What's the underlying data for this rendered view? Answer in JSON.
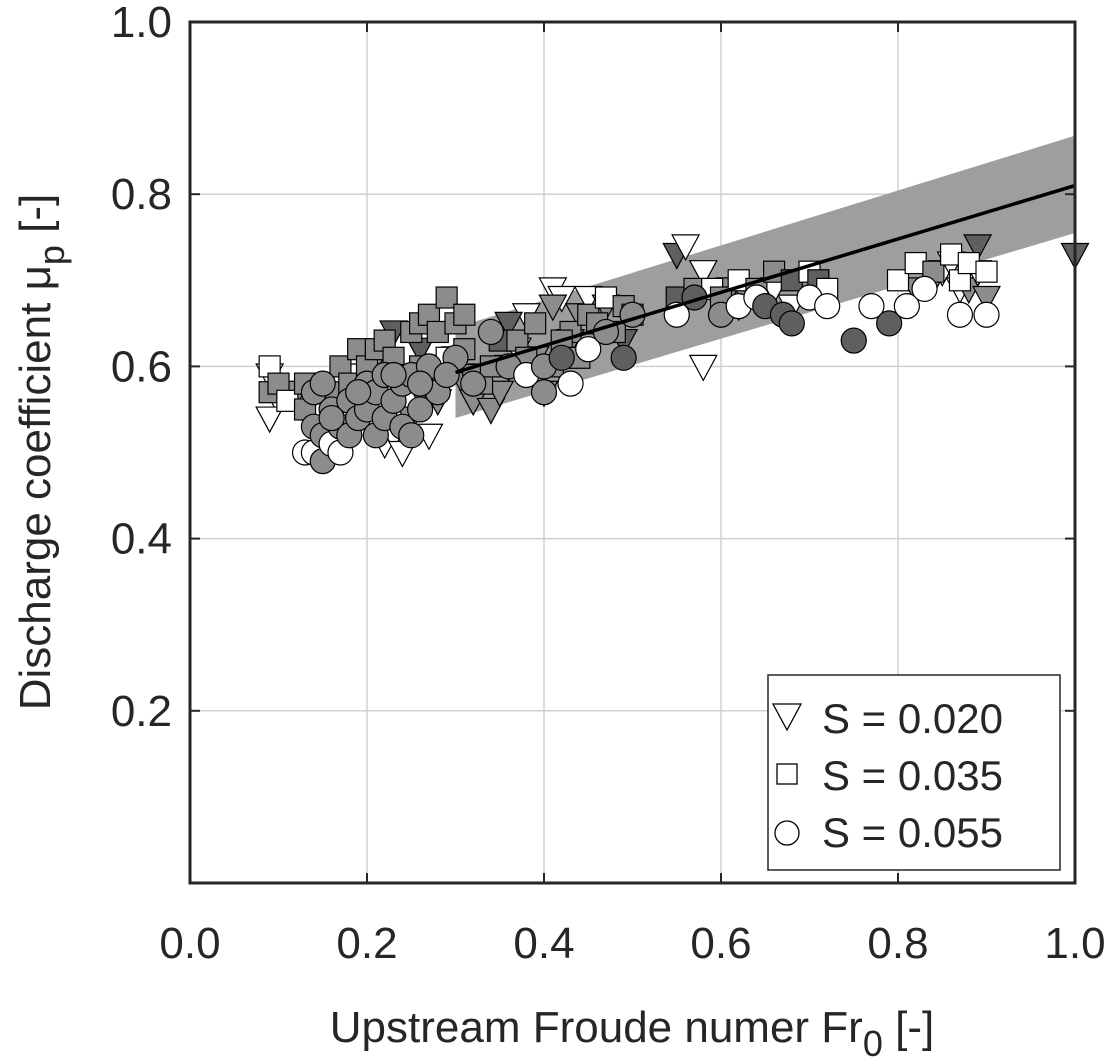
{
  "chart_data": {
    "type": "scatter",
    "xlabel": "Upstream Froude numer Fr",
    "xlabel_sub": "0",
    "xlabel_suffix": " [-]",
    "ylabel": "Discharge coefficient μ",
    "ylabel_sub": "p",
    "ylabel_suffix": " [-]",
    "xlim": [
      0.0,
      1.0
    ],
    "ylim": [
      0.0,
      1.0
    ],
    "xticks": [
      "0.0",
      "0.2",
      "0.4",
      "0.6",
      "0.8",
      "1.0"
    ],
    "yticks": [
      "0.2",
      "0.4",
      "0.6",
      "0.8",
      "1.0"
    ],
    "grid": true,
    "legend_position": "bottom-right",
    "colors": {
      "white": "#ffffff",
      "light": "#8c8c8c",
      "dark": "#5f5f5f",
      "band": "#9e9e9e",
      "line": "#000000"
    },
    "fit_line": {
      "x": [
        0.3,
        1.0
      ],
      "y": [
        0.593,
        0.81
      ]
    },
    "uncertainty_band": {
      "x": [
        0.3,
        1.0
      ],
      "lower": [
        0.54,
        0.755
      ],
      "upper": [
        0.645,
        0.868
      ]
    },
    "series": [
      {
        "name": "S = 0.020",
        "marker": "triangle-down",
        "points": [
          [
            0.09,
            0.59,
            "white"
          ],
          [
            0.1,
            0.56,
            "white"
          ],
          [
            0.09,
            0.54,
            "white"
          ],
          [
            0.12,
            0.57,
            "light"
          ],
          [
            0.15,
            0.57,
            "light"
          ],
          [
            0.17,
            0.58,
            "white"
          ],
          [
            0.19,
            0.59,
            "white"
          ],
          [
            0.2,
            0.56,
            "light"
          ],
          [
            0.21,
            0.53,
            "white"
          ],
          [
            0.22,
            0.51,
            "white"
          ],
          [
            0.23,
            0.52,
            "white"
          ],
          [
            0.24,
            0.5,
            "white"
          ],
          [
            0.25,
            0.54,
            "light"
          ],
          [
            0.26,
            0.57,
            "light"
          ],
          [
            0.27,
            0.52,
            "white"
          ],
          [
            0.28,
            0.59,
            "light"
          ],
          [
            0.29,
            0.6,
            "white"
          ],
          [
            0.3,
            0.61,
            "light"
          ],
          [
            0.31,
            0.58,
            "light"
          ],
          [
            0.32,
            0.56,
            "light"
          ],
          [
            0.33,
            0.59,
            "light"
          ],
          [
            0.34,
            0.55,
            "light"
          ],
          [
            0.35,
            0.57,
            "light"
          ],
          [
            0.36,
            0.6,
            "light"
          ],
          [
            0.37,
            0.62,
            "white"
          ],
          [
            0.38,
            0.66,
            "white"
          ],
          [
            0.39,
            0.61,
            "light"
          ],
          [
            0.4,
            0.57,
            "light"
          ],
          [
            0.41,
            0.69,
            "white"
          ],
          [
            0.42,
            0.68,
            "white"
          ],
          [
            0.43,
            0.63,
            "light"
          ],
          [
            0.44,
            0.66,
            "light"
          ],
          [
            0.45,
            0.68,
            "white"
          ],
          [
            0.47,
            0.67,
            "light"
          ],
          [
            0.49,
            0.63,
            "dark"
          ],
          [
            0.26,
            0.62,
            "dark"
          ],
          [
            0.23,
            0.64,
            "dark"
          ],
          [
            0.21,
            0.61,
            "light"
          ],
          [
            0.28,
            0.56,
            "light"
          ],
          [
            0.36,
            0.65,
            "dark"
          ],
          [
            0.41,
            0.67,
            "light"
          ],
          [
            0.55,
            0.73,
            "dark"
          ],
          [
            0.56,
            0.74,
            "white"
          ],
          [
            0.58,
            0.71,
            "white"
          ],
          [
            0.58,
            0.6,
            "white"
          ],
          [
            0.6,
            0.67,
            "white"
          ],
          [
            0.61,
            0.69,
            "light"
          ],
          [
            0.62,
            0.67,
            "light"
          ],
          [
            0.63,
            0.68,
            "light"
          ],
          [
            0.66,
            0.69,
            "white"
          ],
          [
            0.68,
            0.67,
            "white"
          ],
          [
            0.7,
            0.69,
            "light"
          ],
          [
            0.82,
            0.69,
            "light"
          ],
          [
            0.84,
            0.7,
            "light"
          ],
          [
            0.85,
            0.71,
            "white"
          ],
          [
            0.86,
            0.72,
            "white"
          ],
          [
            0.87,
            0.69,
            "white"
          ],
          [
            0.88,
            0.69,
            "light"
          ],
          [
            0.89,
            0.74,
            "dark"
          ],
          [
            0.9,
            0.68,
            "light"
          ],
          [
            0.89,
            0.71,
            "white"
          ],
          [
            1.0,
            0.73,
            "dark"
          ]
        ]
      },
      {
        "name": "S = 0.035",
        "marker": "square",
        "points": [
          [
            0.09,
            0.6,
            "white"
          ],
          [
            0.09,
            0.57,
            "light"
          ],
          [
            0.1,
            0.58,
            "light"
          ],
          [
            0.11,
            0.56,
            "white"
          ],
          [
            0.13,
            0.58,
            "light"
          ],
          [
            0.16,
            0.57,
            "light"
          ],
          [
            0.17,
            0.6,
            "light"
          ],
          [
            0.18,
            0.58,
            "light"
          ],
          [
            0.19,
            0.62,
            "light"
          ],
          [
            0.2,
            0.6,
            "light"
          ],
          [
            0.21,
            0.62,
            "light"
          ],
          [
            0.22,
            0.63,
            "light"
          ],
          [
            0.23,
            0.61,
            "light"
          ],
          [
            0.24,
            0.59,
            "light"
          ],
          [
            0.25,
            0.64,
            "light"
          ],
          [
            0.26,
            0.65,
            "light"
          ],
          [
            0.27,
            0.66,
            "light"
          ],
          [
            0.28,
            0.64,
            "light"
          ],
          [
            0.29,
            0.68,
            "light"
          ],
          [
            0.3,
            0.65,
            "light"
          ],
          [
            0.31,
            0.62,
            "light"
          ],
          [
            0.32,
            0.59,
            "light"
          ],
          [
            0.33,
            0.58,
            "light"
          ],
          [
            0.35,
            0.63,
            "dark"
          ],
          [
            0.37,
            0.63,
            "light"
          ],
          [
            0.39,
            0.65,
            "light"
          ],
          [
            0.41,
            0.6,
            "light"
          ],
          [
            0.43,
            0.64,
            "light"
          ],
          [
            0.45,
            0.66,
            "light"
          ],
          [
            0.47,
            0.68,
            "white"
          ],
          [
            0.49,
            0.67,
            "light"
          ],
          [
            0.5,
            0.66,
            "light"
          ],
          [
            0.55,
            0.68,
            "dark"
          ],
          [
            0.57,
            0.69,
            "light"
          ],
          [
            0.59,
            0.69,
            "white"
          ],
          [
            0.6,
            0.68,
            "light"
          ],
          [
            0.62,
            0.7,
            "white"
          ],
          [
            0.64,
            0.69,
            "light"
          ],
          [
            0.66,
            0.71,
            "light"
          ],
          [
            0.68,
            0.7,
            "dark"
          ],
          [
            0.7,
            0.71,
            "white"
          ],
          [
            0.71,
            0.7,
            "dark"
          ],
          [
            0.72,
            0.69,
            "white"
          ],
          [
            0.8,
            0.7,
            "white"
          ],
          [
            0.82,
            0.72,
            "white"
          ],
          [
            0.84,
            0.71,
            "light"
          ],
          [
            0.86,
            0.73,
            "white"
          ],
          [
            0.87,
            0.7,
            "white"
          ],
          [
            0.88,
            0.72,
            "white"
          ],
          [
            0.9,
            0.71,
            "white"
          ],
          [
            0.13,
            0.55,
            "light"
          ],
          [
            0.26,
            0.6,
            "light"
          ],
          [
            0.29,
            0.61,
            "white"
          ],
          [
            0.31,
            0.66,
            "light"
          ],
          [
            0.34,
            0.6,
            "light"
          ],
          [
            0.38,
            0.61,
            "light"
          ],
          [
            0.42,
            0.63,
            "light"
          ],
          [
            0.44,
            0.61,
            "light"
          ],
          [
            0.46,
            0.65,
            "light"
          ],
          [
            0.48,
            0.64,
            "light"
          ]
        ]
      },
      {
        "name": "S = 0.055",
        "marker": "circle",
        "points": [
          [
            0.13,
            0.5,
            "white"
          ],
          [
            0.14,
            0.5,
            "white"
          ],
          [
            0.14,
            0.53,
            "light"
          ],
          [
            0.15,
            0.49,
            "light"
          ],
          [
            0.15,
            0.52,
            "light"
          ],
          [
            0.16,
            0.51,
            "white"
          ],
          [
            0.16,
            0.55,
            "light"
          ],
          [
            0.17,
            0.5,
            "white"
          ],
          [
            0.17,
            0.53,
            "light"
          ],
          [
            0.18,
            0.56,
            "light"
          ],
          [
            0.18,
            0.52,
            "light"
          ],
          [
            0.19,
            0.54,
            "light"
          ],
          [
            0.2,
            0.58,
            "light"
          ],
          [
            0.2,
            0.55,
            "light"
          ],
          [
            0.21,
            0.52,
            "light"
          ],
          [
            0.21,
            0.57,
            "light"
          ],
          [
            0.22,
            0.54,
            "light"
          ],
          [
            0.22,
            0.59,
            "light"
          ],
          [
            0.23,
            0.56,
            "light"
          ],
          [
            0.24,
            0.53,
            "light"
          ],
          [
            0.24,
            0.58,
            "light"
          ],
          [
            0.25,
            0.59,
            "light"
          ],
          [
            0.26,
            0.55,
            "light"
          ],
          [
            0.27,
            0.6,
            "light"
          ],
          [
            0.28,
            0.57,
            "light"
          ],
          [
            0.3,
            0.61,
            "light"
          ],
          [
            0.32,
            0.58,
            "light"
          ],
          [
            0.34,
            0.64,
            "light"
          ],
          [
            0.36,
            0.6,
            "light"
          ],
          [
            0.38,
            0.59,
            "white"
          ],
          [
            0.4,
            0.6,
            "light"
          ],
          [
            0.4,
            0.57,
            "light"
          ],
          [
            0.42,
            0.61,
            "dark"
          ],
          [
            0.43,
            0.58,
            "white"
          ],
          [
            0.45,
            0.62,
            "white"
          ],
          [
            0.47,
            0.64,
            "light"
          ],
          [
            0.49,
            0.61,
            "dark"
          ],
          [
            0.5,
            0.66,
            "light"
          ],
          [
            0.55,
            0.66,
            "white"
          ],
          [
            0.57,
            0.68,
            "dark"
          ],
          [
            0.6,
            0.66,
            "light"
          ],
          [
            0.62,
            0.67,
            "white"
          ],
          [
            0.64,
            0.68,
            "white"
          ],
          [
            0.65,
            0.67,
            "dark"
          ],
          [
            0.67,
            0.66,
            "dark"
          ],
          [
            0.68,
            0.65,
            "dark"
          ],
          [
            0.7,
            0.68,
            "white"
          ],
          [
            0.72,
            0.67,
            "white"
          ],
          [
            0.75,
            0.63,
            "dark"
          ],
          [
            0.77,
            0.67,
            "white"
          ],
          [
            0.79,
            0.65,
            "dark"
          ],
          [
            0.81,
            0.67,
            "white"
          ],
          [
            0.83,
            0.69,
            "white"
          ],
          [
            0.87,
            0.66,
            "white"
          ],
          [
            0.9,
            0.66,
            "white"
          ],
          [
            0.14,
            0.57,
            "light"
          ],
          [
            0.15,
            0.58,
            "light"
          ],
          [
            0.16,
            0.54,
            "light"
          ],
          [
            0.19,
            0.57,
            "light"
          ],
          [
            0.23,
            0.59,
            "light"
          ],
          [
            0.25,
            0.52,
            "light"
          ],
          [
            0.26,
            0.58,
            "light"
          ],
          [
            0.29,
            0.59,
            "light"
          ]
        ]
      }
    ]
  }
}
